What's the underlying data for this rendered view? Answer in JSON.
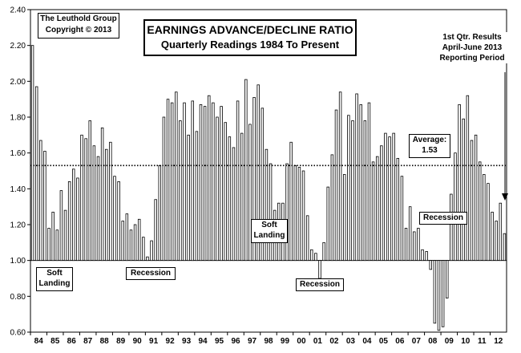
{
  "chart_data": {
    "type": "bar",
    "title": "EARNINGS ADVANCE/DECLINE RATIO",
    "subtitle": "Quarterly Readings 1984 To Present",
    "source_lines": [
      "The Leuthold Group",
      "Copyright © 2013"
    ],
    "note_lines": [
      "1st Qtr. Results",
      "April-June 2013",
      "Reporting Period"
    ],
    "average": {
      "value": 1.53,
      "label_lines": [
        "Average:",
        "1.53"
      ]
    },
    "baseline": 1.0,
    "ylim": [
      0.6,
      2.4
    ],
    "y_ticks": [
      "0.60",
      "0.80",
      "1.00",
      "1.20",
      "1.40",
      "1.60",
      "1.80",
      "2.00",
      "2.20",
      "2.40"
    ],
    "x_ticks": [
      "84",
      "85",
      "86",
      "87",
      "88",
      "89",
      "90",
      "91",
      "92",
      "93",
      "94",
      "95",
      "96",
      "97",
      "98",
      "99",
      "00",
      "01",
      "02",
      "03",
      "04",
      "05",
      "06",
      "07",
      "08",
      "09",
      "10",
      "11",
      "12"
    ],
    "annotations": [
      {
        "id": "soft-landing-1",
        "lines": [
          "Soft",
          "Landing"
        ]
      },
      {
        "id": "recession-1",
        "lines": [
          "Recession"
        ]
      },
      {
        "id": "soft-landing-2",
        "lines": [
          "Soft",
          "Landing"
        ]
      },
      {
        "id": "recession-2",
        "lines": [
          "Recession"
        ]
      },
      {
        "id": "recession-3",
        "lines": [
          "Recession"
        ]
      }
    ],
    "values": [
      2.2,
      1.97,
      1.67,
      1.61,
      1.18,
      1.27,
      1.17,
      1.39,
      1.28,
      1.44,
      1.51,
      1.46,
      1.7,
      1.68,
      1.78,
      1.64,
      1.58,
      1.74,
      1.62,
      1.66,
      1.47,
      1.44,
      1.22,
      1.26,
      1.17,
      1.2,
      1.23,
      1.13,
      1.02,
      1.11,
      1.34,
      1.53,
      1.8,
      1.9,
      1.88,
      1.94,
      1.78,
      1.88,
      1.7,
      1.89,
      1.72,
      1.87,
      1.86,
      1.92,
      1.88,
      1.8,
      1.86,
      1.77,
      1.69,
      1.63,
      1.89,
      1.71,
      2.01,
      1.76,
      1.91,
      1.98,
      1.85,
      1.62,
      1.54,
      1.28,
      1.32,
      1.32,
      1.54,
      1.66,
      1.53,
      1.52,
      1.5,
      1.25,
      1.06,
      1.04,
      0.9,
      1.1,
      1.41,
      1.59,
      1.84,
      1.94,
      1.48,
      1.81,
      1.78,
      1.93,
      1.87,
      1.78,
      1.88,
      1.55,
      1.58,
      1.64,
      1.71,
      1.69,
      1.71,
      1.57,
      1.47,
      1.18,
      1.3,
      1.16,
      1.18,
      1.06,
      1.05,
      0.95,
      0.65,
      0.61,
      0.63,
      0.79,
      1.37,
      1.6,
      1.87,
      1.79,
      1.92,
      1.67,
      1.7,
      1.55,
      1.48,
      1.43,
      1.27,
      1.22,
      1.32,
      1.15
    ]
  }
}
